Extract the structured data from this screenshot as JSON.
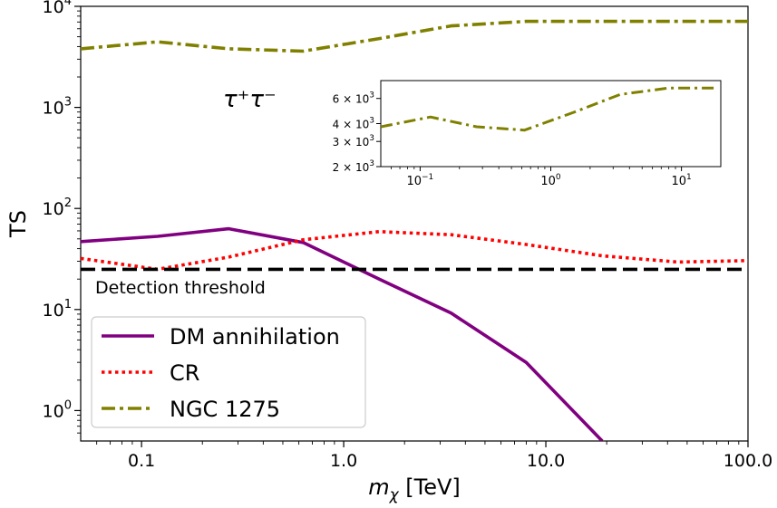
{
  "chart_data": [
    {
      "type": "line",
      "xlabel": "m_χ [TeV]",
      "xlabel_main": "m",
      "xlabel_sub": "χ",
      "xlabel_unit": " [TeV]",
      "ylabel": "TS",
      "xscale": "log",
      "yscale": "log",
      "xlim": [
        0.05,
        100
      ],
      "ylim": [
        0.5,
        10000
      ],
      "x_ticks": [
        0.1,
        1.0,
        10.0,
        100.0
      ],
      "x_tick_labels": [
        "0.1",
        "1.0",
        "10.0",
        "100.0"
      ],
      "y_ticks": [
        1,
        10,
        100,
        1000,
        10000
      ],
      "y_tick_exponents": [
        "0",
        "1",
        "2",
        "3",
        "4"
      ],
      "y_tick_base": "10",
      "annotation": "τ⁺τ⁻",
      "threshold": {
        "value": 25,
        "label": "Detection threshold",
        "color": "#000000"
      },
      "legend_placement": "lower-left",
      "series": [
        {
          "name": "DM annihilation",
          "color": "#800080",
          "style": "solid",
          "x": [
            0.05,
            0.12,
            0.27,
            0.63,
            1.5,
            3.4,
            8.0,
            19.0
          ],
          "y": [
            47,
            53,
            63,
            46,
            20,
            9.2,
            3.0,
            0.5
          ]
        },
        {
          "name": "CR",
          "color": "#ff0000",
          "style": "dotted",
          "x": [
            0.05,
            0.12,
            0.27,
            0.63,
            1.5,
            3.4,
            8.0,
            19.0,
            45.0,
            100.0
          ],
          "y": [
            32,
            25,
            33,
            49,
            59,
            55,
            44,
            34,
            29.5,
            30.5
          ]
        },
        {
          "name": "NGC 1275",
          "color": "#808000",
          "style": "dashdot",
          "x": [
            0.05,
            0.12,
            0.27,
            0.63,
            1.5,
            3.4,
            8.0,
            19.0,
            45.0,
            100.0
          ],
          "y": [
            3800,
            4450,
            3800,
            3600,
            4800,
            6400,
            7100,
            7100,
            7100,
            7100
          ]
        }
      ]
    },
    {
      "type": "line",
      "role": "inset",
      "xscale": "log",
      "yscale": "log",
      "xlim": [
        0.05,
        20
      ],
      "ylim": [
        2000,
        8000
      ],
      "x_ticks": [
        0.1,
        1,
        10
      ],
      "x_tick_exponents": [
        "−1",
        "0",
        "1"
      ],
      "y_ticks": [
        2000,
        3000,
        4000,
        6000
      ],
      "y_tick_mantissas": [
        "2",
        "3",
        "4",
        "6"
      ],
      "y_tick_exponent": "3",
      "series": [
        {
          "name": "NGC 1275",
          "color": "#808000",
          "style": "dashdot",
          "x": [
            0.05,
            0.12,
            0.27,
            0.63,
            1.5,
            3.4,
            8.0,
            19.0
          ],
          "y": [
            3800,
            4450,
            3800,
            3600,
            4800,
            6400,
            7100,
            7100
          ]
        }
      ]
    }
  ]
}
